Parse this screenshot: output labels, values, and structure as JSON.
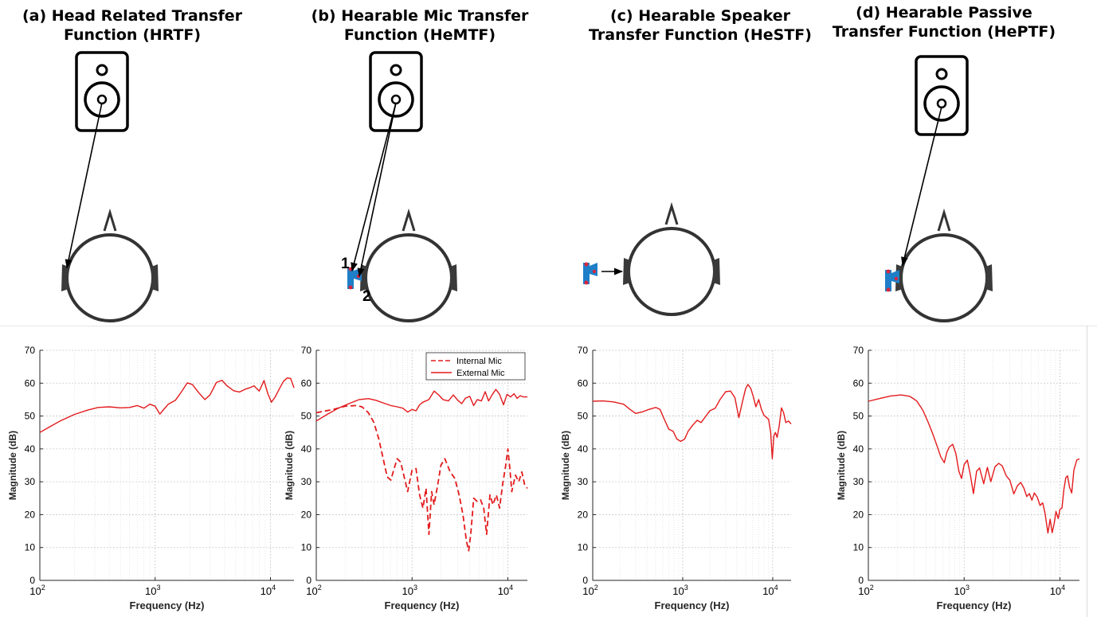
{
  "panels": [
    {
      "title_line1": "(a) Head Related Transfer",
      "title_line2": "Function (HRTF)",
      "diagram": {
        "speaker": true,
        "device": "none",
        "arrow": "speaker-to-left-ear",
        "labels": []
      },
      "chart_data": {
        "type": "line",
        "xscale": "log",
        "xlim": [
          100,
          16000
        ],
        "ylim": [
          0,
          70
        ],
        "yticks": [
          0,
          10,
          20,
          30,
          40,
          50,
          60,
          70
        ],
        "xticks": [
          "10^2",
          "10^3",
          "10^4"
        ],
        "xlabel": "Frequency (Hz)",
        "ylabel": "Magnitude (dB)",
        "grid": true,
        "legend": null,
        "series": [
          {
            "style": "solid",
            "color": "#e31a1c",
            "x": [
              100,
              120,
              150,
              200,
              260,
              320,
              400,
              500,
              600,
              700,
              800,
              900,
              1000,
              1100,
              1200,
              1300,
              1500,
              1700,
              1900,
              2100,
              2400,
              2700,
              3000,
              3400,
              3800,
              4200,
              4800,
              5400,
              6000,
              6600,
              7200,
              8000,
              8800,
              9500,
              10200,
              11000,
              12000,
              13000,
              14000,
              15000,
              16000
            ],
            "y": [
              45,
              46.6,
              48.5,
              50.5,
              51.8,
              52.6,
              52.8,
              52.5,
              52.6,
              53.2,
              52.4,
              53.6,
              53,
              50.6,
              52.2,
              53.6,
              54.8,
              57.5,
              60.1,
              59.6,
              57,
              55,
              56.5,
              60.2,
              60.9,
              59.2,
              57.7,
              57.3,
              58.1,
              58.6,
              59.2,
              57.6,
              60.8,
              56.8,
              54.2,
              55.8,
              58.4,
              60.6,
              61.6,
              61.4,
              58.6
            ]
          }
        ]
      }
    },
    {
      "title_line1": "(b) Hearable Mic Transfer",
      "title_line2": "Function (HeMTF)",
      "diagram": {
        "speaker": true,
        "device": "hearable-on-ear",
        "arrow": "speaker-to-two-mics",
        "labels": [
          "1",
          "2"
        ]
      },
      "chart_data": {
        "type": "line",
        "xscale": "log",
        "xlim": [
          100,
          16000
        ],
        "ylim": [
          0,
          70
        ],
        "yticks": [
          0,
          10,
          20,
          30,
          40,
          50,
          60,
          70
        ],
        "xticks": [
          "10^2",
          "10^3",
          "10^4"
        ],
        "xlabel": "Frequency (Hz)",
        "ylabel": "Magnitude (dB)",
        "grid": true,
        "legend": "top-right",
        "series": [
          {
            "name": "Internal Mic",
            "style": "dashed",
            "color": "#e31a1c",
            "x": [
              100,
              150,
              200,
              260,
              300,
              350,
              400,
              450,
              500,
              550,
              600,
              650,
              700,
              760,
              820,
              900,
              1000,
              1100,
              1200,
              1300,
              1400,
              1500,
              1600,
              1700,
              1850,
              2000,
              2200,
              2500,
              2800,
              3100,
              3400,
              3700,
              3900,
              4100,
              4400,
              4800,
              5200,
              5600,
              6000,
              6500,
              7000,
              7600,
              8200,
              8800,
              9500,
              10000,
              10500,
              11000,
              12000,
              13000,
              14000,
              15000,
              16000
            ],
            "y": [
              51,
              52,
              53,
              53.2,
              52.8,
              51,
              48,
              43,
              37,
              31.5,
              30.5,
              34,
              37,
              36,
              32,
              27,
              33.5,
              34,
              26,
              22,
              28,
              14,
              27,
              23,
              29,
              35,
              37,
              33,
              31,
              26,
              20,
              12,
              9,
              14,
              25,
              24,
              24.5,
              22,
              14,
              26,
              23,
              26,
              22,
              29,
              35,
              40,
              34,
              27,
              32,
              30,
              33,
              29,
              28
            ]
          },
          {
            "name": "External Mic",
            "style": "solid",
            "color": "#e31a1c",
            "x": [
              100,
              130,
              170,
              220,
              280,
              350,
              420,
              500,
              600,
              700,
              800,
              900,
              1000,
              1100,
              1200,
              1300,
              1500,
              1700,
              1900,
              2100,
              2400,
              2700,
              3000,
              3300,
              3600,
              4000,
              4400,
              4800,
              5300,
              5800,
              6300,
              6900,
              7500,
              8200,
              9000,
              9800,
              10700,
              11600,
              12500,
              13500,
              14500,
              16000
            ],
            "y": [
              48.5,
              50.5,
              52.4,
              53.8,
              55,
              55.3,
              54.8,
              54,
              53.2,
              52.8,
              52.4,
              51.2,
              52,
              51.6,
              53.4,
              54.2,
              55,
              57.6,
              56.4,
              55,
              54.6,
              56.4,
              54.8,
              53.8,
              55.4,
              56,
              53.2,
              55,
              54.6,
              57.4,
              54.6,
              56.6,
              58.1,
              56.6,
              53.4,
              56.6,
              55.8,
              56.8,
              55.4,
              56.2,
              55.8,
              55.8
            ]
          }
        ]
      }
    },
    {
      "title_line1": "(c) Hearable Speaker",
      "title_line2": "Transfer Function (HeSTF)",
      "diagram": {
        "speaker": false,
        "device": "hearable-beside-ear",
        "arrow": "device-to-left-ear",
        "labels": []
      },
      "chart_data": {
        "type": "line",
        "xscale": "log",
        "xlim": [
          100,
          16000
        ],
        "ylim": [
          0,
          70
        ],
        "yticks": [
          0,
          10,
          20,
          30,
          40,
          50,
          60,
          70
        ],
        "xticks": [
          "10^2",
          "10^3",
          "10^4"
        ],
        "xlabel": "Frequency (Hz)",
        "ylabel": "Magnitude (dB)",
        "grid": true,
        "legend": null,
        "series": [
          {
            "style": "solid",
            "color": "#e31a1c",
            "x": [
              100,
              130,
              170,
              220,
              260,
              300,
              350,
              420,
              500,
              560,
              620,
              700,
              780,
              860,
              950,
              1050,
              1150,
              1300,
              1450,
              1600,
              1800,
              2000,
              2300,
              2600,
              3000,
              3400,
              3800,
              4200,
              4600,
              5000,
              5300,
              5700,
              6100,
              6500,
              7000,
              7500,
              8000,
              8500,
              9000,
              9500,
              9900,
              10300,
              10700,
              11200,
              11800,
              12500,
              13200,
              14000,
              15000,
              16000
            ],
            "y": [
              54.5,
              54.6,
              54.3,
              53.6,
              52,
              50.8,
              51.2,
              52,
              52.6,
              52,
              49.2,
              46,
              45.4,
              43,
              42.3,
              43,
              45.4,
              47.3,
              48.7,
              48,
              49.9,
              51.6,
              52.4,
              55,
              57.4,
              57.6,
              55.6,
              49.5,
              54.2,
              58.3,
              59.6,
              58.4,
              55.8,
              52.8,
              55,
              52,
              50.2,
              49.6,
              49,
              45,
              37,
              44,
              45,
              43.5,
              47,
              52.5,
              51,
              48,
              48.5,
              47.6
            ]
          }
        ]
      }
    },
    {
      "title_line1": "(d) Hearable Passive",
      "title_line2": "Transfer Function (HePTF)",
      "diagram": {
        "speaker": true,
        "device": "hearable-on-ear",
        "arrow": "speaker-to-device",
        "labels": []
      },
      "chart_data": {
        "type": "line",
        "xscale": "log",
        "xlim": [
          100,
          16000
        ],
        "ylim": [
          0,
          70
        ],
        "yticks": [
          0,
          10,
          20,
          30,
          40,
          50,
          60,
          70
        ],
        "xticks": [
          "10^2",
          "10^3",
          "10^4"
        ],
        "xlabel": "Frequency (Hz)",
        "ylabel": "Magnitude (dB)",
        "grid": true,
        "legend": null,
        "series": [
          {
            "style": "solid",
            "color": "#e31a1c",
            "x": [
              100,
              130,
              170,
              220,
              270,
              320,
              370,
              420,
              470,
              520,
              570,
              620,
              660,
              700,
              760,
              820,
              880,
              940,
              1000,
              1080,
              1160,
              1250,
              1350,
              1450,
              1600,
              1750,
              1900,
              2100,
              2300,
              2500,
              2750,
              3000,
              3300,
              3600,
              3900,
              4200,
              4500,
              4800,
              5100,
              5400,
              5800,
              6200,
              6600,
              7000,
              7500,
              7900,
              8300,
              8700,
              9100,
              9600,
              10000,
              10500,
              11000,
              11500,
              12000,
              12600,
              13300,
              14000,
              15000,
              16000
            ],
            "y": [
              54.5,
              55.3,
              56.1,
              56.4,
              56,
              54.6,
              51.8,
              48.2,
              44.6,
              41,
              37.6,
              35.8,
              39,
              40.6,
              41.4,
              38.5,
              33.2,
              31,
              35.2,
              36.6,
              32.2,
              26.4,
              33.2,
              34.2,
              29.4,
              34.4,
              30,
              34.6,
              35.6,
              34.8,
              31.8,
              30.5,
              26.3,
              28.8,
              29.8,
              28.1,
              25.5,
              26.4,
              24.4,
              26.6,
              25.3,
              22.8,
              23.6,
              20.4,
              14.4,
              18.6,
              14.5,
              17.2,
              21,
              18.8,
              21.6,
              22,
              27.6,
              31.2,
              31.8,
              28.4,
              26.6,
              33.6,
              36.6,
              37
            ]
          }
        ]
      }
    }
  ]
}
